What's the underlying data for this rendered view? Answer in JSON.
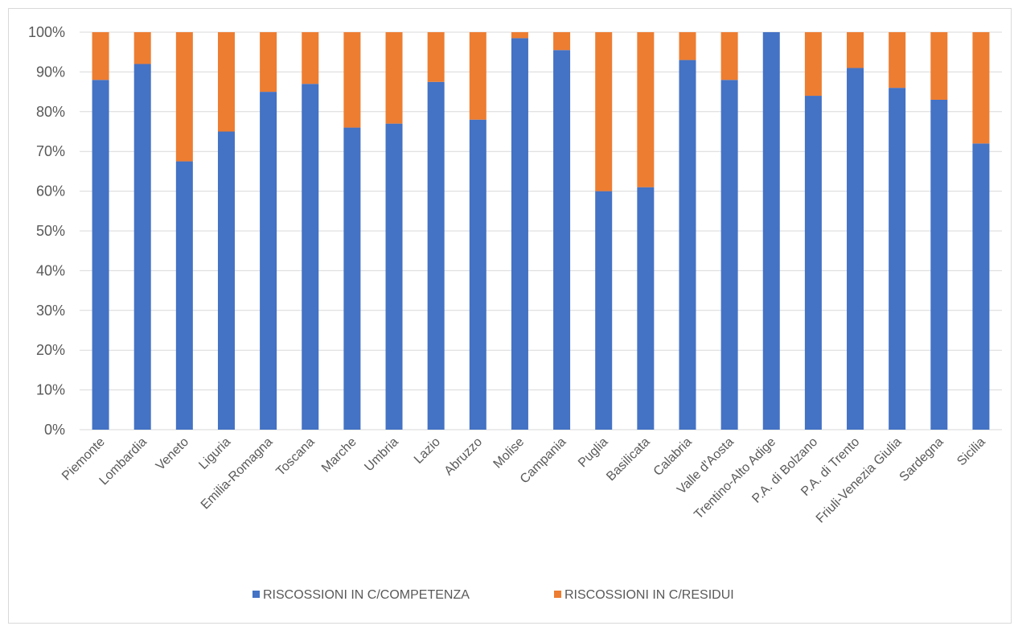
{
  "chart_data": {
    "type": "bar",
    "stacked": true,
    "percent_stacked": true,
    "categories": [
      "Piemonte",
      "Lombardia",
      "Veneto",
      "Liguria",
      "Emilia-Romagna",
      "Toscana",
      "Marche",
      "Umbria",
      "Lazio",
      "Abruzzo",
      "Molise",
      "Campania",
      "Puglia",
      "Basilicata",
      "Calabria",
      "Valle d'Aosta",
      "Trentino-Alto Adige",
      "P.A. di Bolzano",
      "P.A. di Trento",
      "Friuli-Venezia Giulia",
      "Sardegna",
      "Sicilia"
    ],
    "series": [
      {
        "name": "RISCOSSIONI IN C/COMPETENZA",
        "color": "#4472c4",
        "values": [
          88,
          92,
          67.5,
          75,
          85,
          87,
          76,
          77,
          87.5,
          78,
          98.5,
          95.5,
          60,
          61,
          93,
          88,
          100,
          84,
          91,
          86,
          83,
          72
        ]
      },
      {
        "name": "RISCOSSIONI IN C/RESIDUI",
        "color": "#ed7d31",
        "values": [
          12,
          8,
          32.5,
          25,
          15,
          13,
          24,
          23,
          12.5,
          22,
          1.5,
          4.5,
          40,
          39,
          7,
          12,
          0,
          16,
          9,
          14,
          17,
          28
        ]
      }
    ],
    "yticks": [
      "0%",
      "10%",
      "20%",
      "30%",
      "40%",
      "50%",
      "60%",
      "70%",
      "80%",
      "90%",
      "100%"
    ],
    "ylim": [
      0,
      100
    ],
    "grid": true,
    "legend_position": "bottom",
    "title": "",
    "xlabel": "",
    "ylabel": ""
  }
}
